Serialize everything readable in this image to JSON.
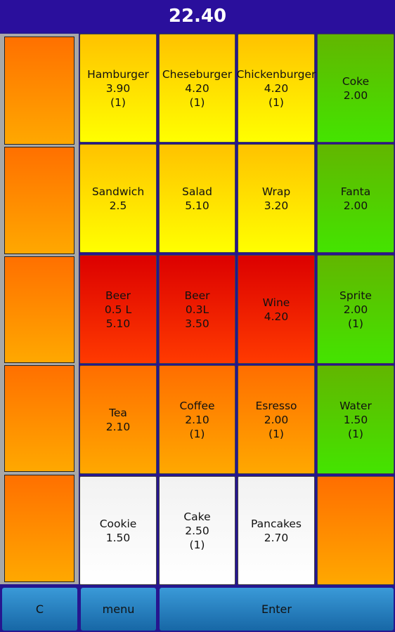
{
  "header": {
    "total": "22.40"
  },
  "grid": [
    [
      {
        "lines": [
          "Hamburger",
          "3.90",
          "(1)"
        ],
        "color": [
          "#ffc200",
          "#ffff00"
        ]
      },
      {
        "lines": [
          "Cheseburger",
          "4.20",
          "(1)"
        ],
        "color": [
          "#ffc200",
          "#ffff00"
        ]
      },
      {
        "lines": [
          "Chickenburger",
          "4.20",
          "(1)"
        ],
        "color": [
          "#ffc200",
          "#ffff00"
        ]
      },
      {
        "lines": [
          "Coke",
          "2.00"
        ],
        "color": [
          "#62b600",
          "#44e400"
        ]
      }
    ],
    [
      {
        "lines": [
          "Sandwich",
          "2.5"
        ],
        "color": [
          "#ffc200",
          "#ffff00"
        ]
      },
      {
        "lines": [
          "Salad",
          "5.10"
        ],
        "color": [
          "#ffc200",
          "#ffff00"
        ]
      },
      {
        "lines": [
          "Wrap",
          "3.20"
        ],
        "color": [
          "#ffc200",
          "#ffff00"
        ]
      },
      {
        "lines": [
          "Fanta",
          "2.00"
        ],
        "color": [
          "#62b600",
          "#44e400"
        ]
      }
    ],
    [
      {
        "lines": [
          "Beer",
          "0.5 L",
          "5.10"
        ],
        "color": [
          "#dc0000",
          "#ff3a00"
        ]
      },
      {
        "lines": [
          "Beer",
          "0.3L",
          "3.50"
        ],
        "color": [
          "#dc0000",
          "#ff3a00"
        ]
      },
      {
        "lines": [
          "Wine",
          "4.20"
        ],
        "color": [
          "#dc0000",
          "#ff3a00"
        ]
      },
      {
        "lines": [
          "Sprite",
          "2.00",
          "(1)"
        ],
        "color": [
          "#62b600",
          "#44e400"
        ]
      }
    ],
    [
      {
        "lines": [
          "Tea",
          "2.10"
        ],
        "color": [
          "#ff6e00",
          "#ffa800"
        ]
      },
      {
        "lines": [
          "Coffee",
          "2.10",
          "(1)"
        ],
        "color": [
          "#ff6e00",
          "#ffa800"
        ]
      },
      {
        "lines": [
          "Esresso",
          "2.00",
          "(1)"
        ],
        "color": [
          "#ff6e00",
          "#ffa800"
        ]
      },
      {
        "lines": [
          "Water",
          "1.50",
          "(1)"
        ],
        "color": [
          "#62b600",
          "#44e400"
        ]
      }
    ],
    [
      {
        "lines": [
          "Cookie",
          "1.50"
        ],
        "color": [
          "#f2f2f2",
          "#ffffff"
        ]
      },
      {
        "lines": [
          "Cake",
          "2.50",
          "(1)"
        ],
        "color": [
          "#f2f2f2",
          "#ffffff"
        ]
      },
      {
        "lines": [
          "Pancakes",
          "2.70"
        ],
        "color": [
          "#f2f2f2",
          "#ffffff"
        ]
      },
      {
        "lines": [],
        "color": [
          "#ff6e00",
          "#ffa800"
        ]
      }
    ]
  ],
  "buttons": [
    "C",
    "menu",
    "Enter"
  ]
}
